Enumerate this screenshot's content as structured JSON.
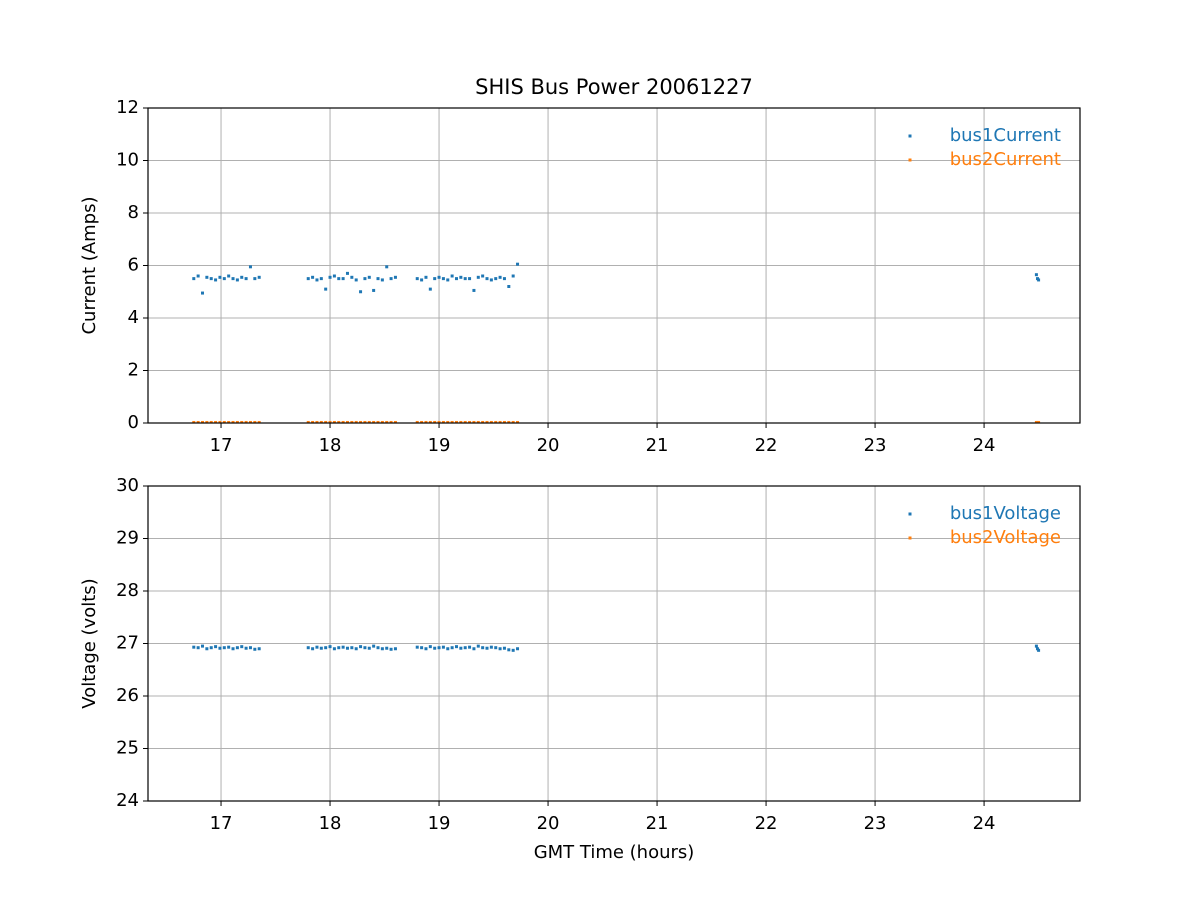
{
  "chart_data": [
    {
      "type": "scatter",
      "title": "SHIS Bus Power 20061227",
      "y_label": "Current (Amps)",
      "x": [
        16.75,
        16.79,
        16.83,
        16.87,
        16.91,
        16.95,
        16.99,
        17.03,
        17.07,
        17.11,
        17.15,
        17.19,
        17.23,
        17.27,
        17.31,
        17.35,
        17.8,
        17.84,
        17.88,
        17.92,
        17.96,
        18,
        18.04,
        18.08,
        18.12,
        18.16,
        18.2,
        18.24,
        18.28,
        18.32,
        18.36,
        18.4,
        18.44,
        18.48,
        18.52,
        18.56,
        18.6,
        18.8,
        18.84,
        18.88,
        18.92,
        18.96,
        19,
        19.04,
        19.08,
        19.12,
        19.16,
        19.2,
        19.24,
        19.28,
        19.32,
        19.36,
        19.4,
        19.44,
        19.48,
        19.52,
        19.56,
        19.6,
        19.64,
        19.68,
        19.72,
        24.48,
        24.49,
        24.5
      ],
      "series": [
        {
          "name": "bus1Current",
          "color": "#1f77b4",
          "values": [
            5.5,
            5.6,
            4.95,
            5.55,
            5.5,
            5.45,
            5.55,
            5.5,
            5.6,
            5.5,
            5.45,
            5.55,
            5.5,
            5.95,
            5.5,
            5.55,
            5.5,
            5.55,
            5.45,
            5.5,
            5.1,
            5.55,
            5.6,
            5.5,
            5.5,
            5.7,
            5.55,
            5.45,
            5.0,
            5.5,
            5.55,
            5.05,
            5.5,
            5.45,
            5.95,
            5.5,
            5.55,
            5.5,
            5.45,
            5.55,
            5.1,
            5.5,
            5.55,
            5.5,
            5.45,
            5.6,
            5.5,
            5.55,
            5.5,
            5.5,
            5.05,
            5.55,
            5.6,
            5.5,
            5.45,
            5.5,
            5.55,
            5.5,
            5.2,
            5.6,
            6.05,
            5.65,
            5.5,
            5.45
          ]
        },
        {
          "name": "bus2Current",
          "color": "#ff7f0e",
          "values": [
            0.02,
            0.02,
            0.02,
            0.02,
            0.02,
            0.02,
            0.02,
            0.02,
            0.02,
            0.02,
            0.02,
            0.02,
            0.02,
            0.02,
            0.02,
            0.02,
            0.02,
            0.02,
            0.02,
            0.02,
            0.02,
            0.02,
            0.02,
            0.02,
            0.02,
            0.02,
            0.02,
            0.02,
            0.02,
            0.02,
            0.02,
            0.02,
            0.02,
            0.02,
            0.02,
            0.02,
            0.02,
            0.02,
            0.02,
            0.02,
            0.02,
            0.02,
            0.02,
            0.02,
            0.02,
            0.02,
            0.02,
            0.02,
            0.02,
            0.02,
            0.02,
            0.02,
            0.02,
            0.02,
            0.02,
            0.02,
            0.02,
            0.02,
            0.02,
            0.02,
            0.02,
            0.02,
            0.02,
            0.02
          ]
        }
      ],
      "xlim": [
        16.33,
        24.88
      ],
      "xticks": [
        17,
        18,
        19,
        20,
        21,
        22,
        23,
        24
      ],
      "ylim": [
        0,
        12
      ],
      "yticks": [
        0,
        2,
        4,
        6,
        8,
        10,
        12
      ],
      "grid": true,
      "legend": "upper right"
    },
    {
      "type": "scatter",
      "x_label": "GMT Time (hours)",
      "y_label": "Voltage (volts)",
      "x": [
        16.75,
        16.79,
        16.83,
        16.87,
        16.91,
        16.95,
        16.99,
        17.03,
        17.07,
        17.11,
        17.15,
        17.19,
        17.23,
        17.27,
        17.31,
        17.35,
        17.8,
        17.84,
        17.88,
        17.92,
        17.96,
        18,
        18.04,
        18.08,
        18.12,
        18.16,
        18.2,
        18.24,
        18.28,
        18.32,
        18.36,
        18.4,
        18.44,
        18.48,
        18.52,
        18.56,
        18.6,
        18.8,
        18.84,
        18.88,
        18.92,
        18.96,
        19,
        19.04,
        19.08,
        19.12,
        19.16,
        19.2,
        19.24,
        19.28,
        19.32,
        19.36,
        19.4,
        19.44,
        19.48,
        19.52,
        19.56,
        19.6,
        19.64,
        19.68,
        19.72,
        24.48,
        24.49,
        24.5
      ],
      "series": [
        {
          "name": "bus1Voltage",
          "color": "#1f77b4",
          "values": [
            26.93,
            26.92,
            26.95,
            26.9,
            26.92,
            26.94,
            26.91,
            26.92,
            26.93,
            26.9,
            26.92,
            26.94,
            26.91,
            26.92,
            26.89,
            26.9,
            26.92,
            26.9,
            26.93,
            26.91,
            26.92,
            26.94,
            26.9,
            26.92,
            26.93,
            26.91,
            26.92,
            26.9,
            26.94,
            26.92,
            26.91,
            26.95,
            26.92,
            26.9,
            26.91,
            26.89,
            26.9,
            26.93,
            26.92,
            26.9,
            26.94,
            26.91,
            26.92,
            26.93,
            26.9,
            26.92,
            26.94,
            26.91,
            26.92,
            26.93,
            26.9,
            26.95,
            26.92,
            26.91,
            26.93,
            26.92,
            26.9,
            26.91,
            26.88,
            26.87,
            26.9,
            26.95,
            26.9,
            26.87
          ]
        },
        {
          "name": "bus2Voltage",
          "color": "#ff7f0e",
          "values": [
            null,
            null,
            null,
            null,
            null,
            null,
            null,
            null,
            null,
            null,
            null,
            null,
            null,
            null,
            null,
            null,
            null,
            null,
            null,
            null,
            null,
            null,
            null,
            null,
            null,
            null,
            null,
            null,
            null,
            null,
            null,
            null,
            null,
            null,
            null,
            null,
            null,
            null,
            null,
            null,
            null,
            null,
            null,
            null,
            null,
            null,
            null,
            null,
            null,
            null,
            null,
            null,
            null,
            null,
            null,
            null,
            null,
            null,
            null,
            null,
            null,
            null,
            null,
            null
          ]
        }
      ],
      "xlim": [
        16.33,
        24.88
      ],
      "xticks": [
        17,
        18,
        19,
        20,
        21,
        22,
        23,
        24
      ],
      "ylim": [
        24,
        30
      ],
      "yticks": [
        24,
        25,
        26,
        27,
        28,
        29,
        30
      ],
      "grid": true,
      "legend": "upper right"
    }
  ]
}
